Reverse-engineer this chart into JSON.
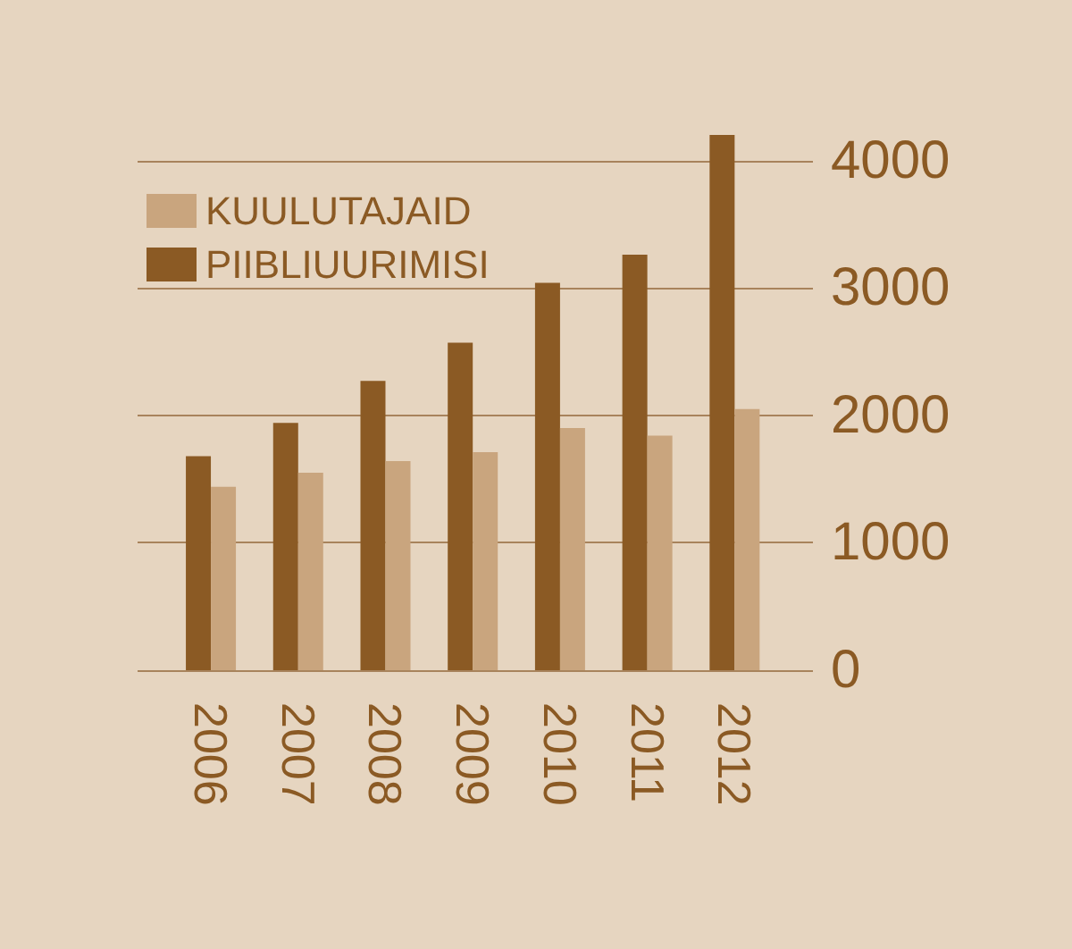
{
  "chart_data": {
    "type": "bar",
    "categories": [
      "2006",
      "2007",
      "2008",
      "2009",
      "2010",
      "2011",
      "2012"
    ],
    "series": [
      {
        "name": "PIIBLIUURIMISI",
        "color": "#8b5a24",
        "values": [
          1680,
          1940,
          2270,
          2570,
          3040,
          3260,
          4200
        ]
      },
      {
        "name": "KUULUTAJAID",
        "color": "#c9a57e",
        "values": [
          1440,
          1550,
          1640,
          1710,
          1900,
          1840,
          2050
        ]
      }
    ],
    "ylim": [
      0,
      4200
    ],
    "yticks": [
      0,
      1000,
      2000,
      3000,
      4000
    ],
    "grid": "y",
    "legend": "top left"
  }
}
